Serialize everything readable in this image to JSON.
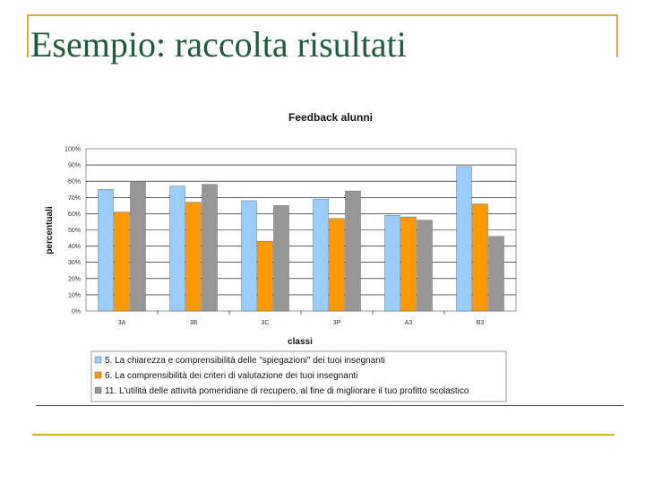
{
  "slide": {
    "title": "Esempio: raccolta risultati"
  },
  "colors": {
    "accent_line": "#c8b43c",
    "title": "#1f5a3a",
    "series": [
      "#99ccff",
      "#ff9900",
      "#969696"
    ]
  },
  "chart_data": {
    "type": "bar",
    "title": "Feedback alunni",
    "xlabel": "classi",
    "ylabel": "percentuali",
    "ylim": [
      0,
      100
    ],
    "yticks": [
      "0%",
      "10%",
      "20%",
      "30%",
      "40%",
      "50%",
      "60%",
      "70%",
      "80%",
      "90%",
      "100%"
    ],
    "grid": true,
    "legend_position": "bottom",
    "categories": [
      "3A",
      "3B",
      "3C",
      "3P",
      "A3",
      "B3"
    ],
    "series": [
      {
        "name": "5. La chiarezza e comprensibilità delle \"spiegazioni\" dei tuoi insegnanti",
        "values": [
          75,
          77,
          68,
          69,
          59,
          89
        ]
      },
      {
        "name": "6. La comprensibilità dei criteri di valutazione dei tuoi insegnanti",
        "values": [
          61,
          67,
          43,
          57,
          58,
          66
        ]
      },
      {
        "name": "11. L'utilità delle attività pomeridiane di recupero, al fine di migliorare il tuo profitto scolastico",
        "values": [
          80,
          78,
          65,
          74,
          56,
          46
        ]
      }
    ]
  }
}
